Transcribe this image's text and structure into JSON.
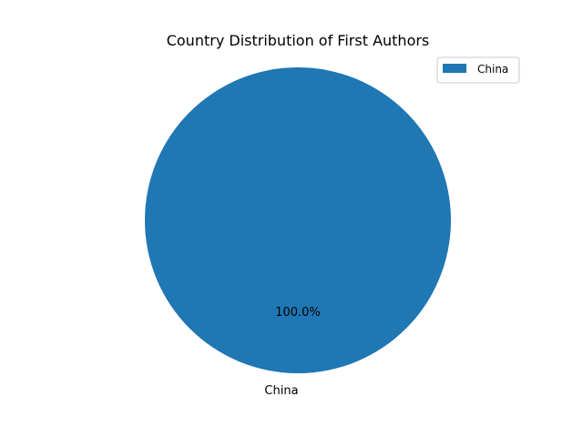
{
  "chart_data": {
    "type": "pie",
    "title": "Country Distribution of First Authors",
    "slices": [
      {
        "label": "China",
        "value": 100.0,
        "percent_label": "100.0%",
        "color": "#1f77b4"
      }
    ],
    "legend": {
      "placement": "upper-right",
      "entries": [
        "China"
      ]
    }
  }
}
